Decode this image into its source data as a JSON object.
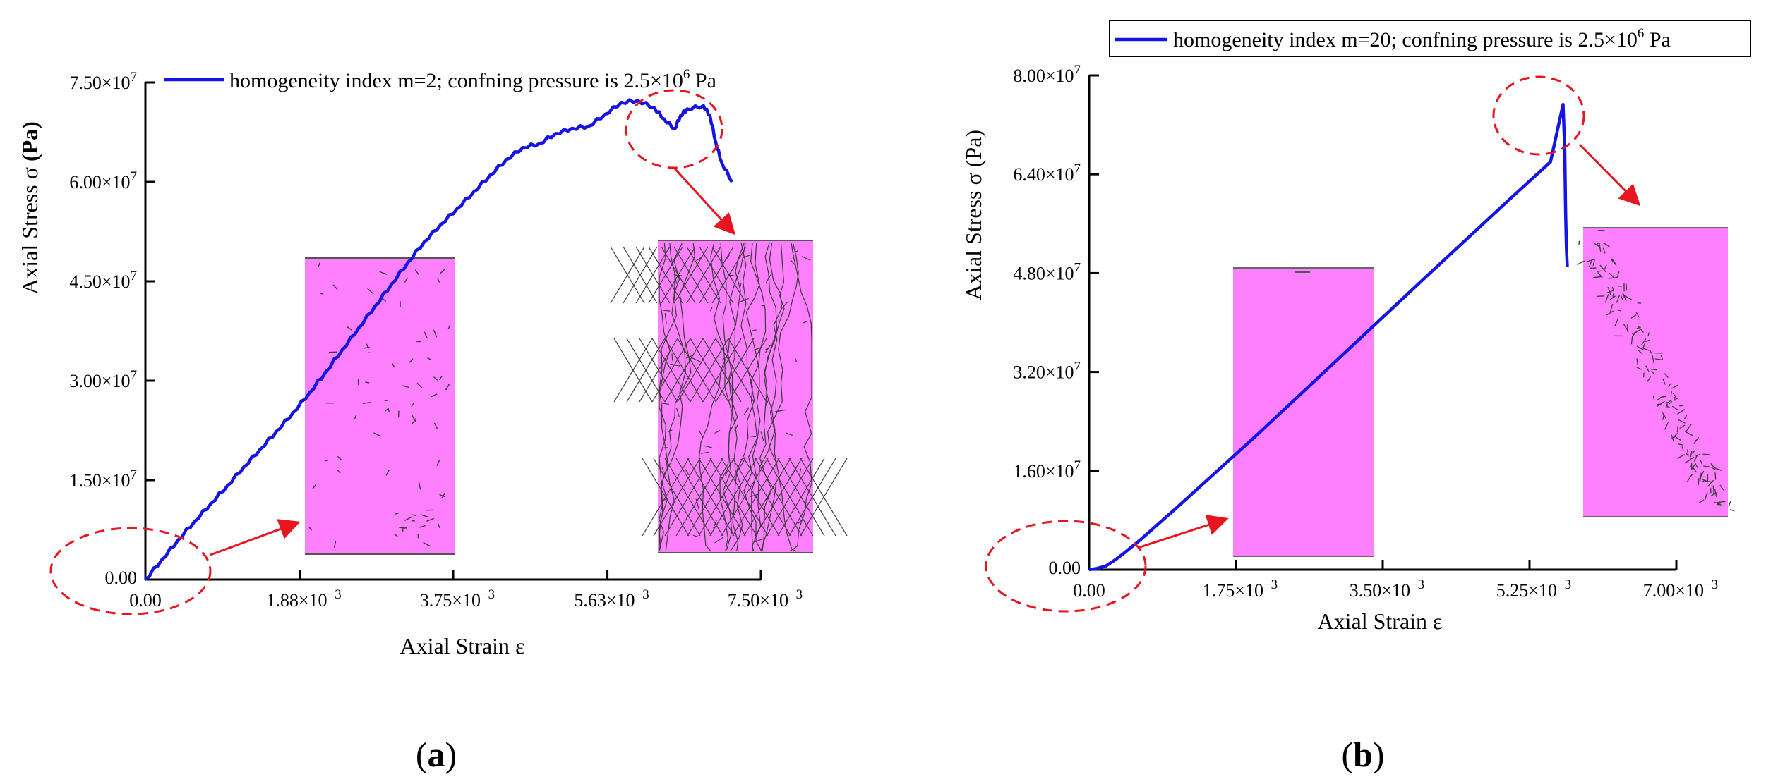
{
  "figure": {
    "colors": {
      "series": "#1414e6",
      "annotation": "#e8141e",
      "specimen": "#ff80ff",
      "crack": "#3a3a3a",
      "axis": "#000000"
    }
  },
  "chart_data": [
    {
      "type": "line",
      "panel_label": "(a)",
      "panel_prefix": "(",
      "panel_letter": "a",
      "panel_suffix": ")",
      "legend": {
        "before_sup": "homogeneity index m=2; confning pressure is 2.5×10",
        "sup": "6",
        "after_sup": " Pa",
        "placement": "top"
      },
      "xlabel": "Axial Strain ε",
      "ylabel": "Axial Stress σ (Pa)",
      "ylabel_parts": {
        "plain": "Axial Stress σ ",
        "bold": "(Pa)"
      },
      "xlim": [
        0,
        0.0075
      ],
      "ylim": [
        0,
        75000000
      ],
      "xticks": [
        {
          "value": 0,
          "label": "0.00",
          "mantissa": "",
          "exp": ""
        },
        {
          "value": 0.00188,
          "label": "1.88×10⁻³",
          "mantissa": "1.88×10",
          "exp": "−3"
        },
        {
          "value": 0.00375,
          "label": "3.75×10⁻³",
          "mantissa": "3.75×10",
          "exp": "−3"
        },
        {
          "value": 0.00563,
          "label": "5.63×10⁻³",
          "mantissa": "5.63×10",
          "exp": "−3"
        },
        {
          "value": 0.0075,
          "label": "7.50×10⁻³",
          "mantissa": "7.50×10",
          "exp": "−3"
        }
      ],
      "yticks": [
        {
          "value": 0,
          "label": "0.00",
          "mantissa": "",
          "exp": ""
        },
        {
          "value": 15000000,
          "label": "1.50×10⁷",
          "mantissa": "1.50×10",
          "exp": "7"
        },
        {
          "value": 30000000,
          "label": "3.00×10⁷",
          "mantissa": "3.00×10",
          "exp": "7"
        },
        {
          "value": 45000000,
          "label": "4.50×10⁷",
          "mantissa": "4.50×10",
          "exp": "7"
        },
        {
          "value": 60000000,
          "label": "6.00×10⁷",
          "mantissa": "6.00×10",
          "exp": "7"
        },
        {
          "value": 75000000,
          "label": "7.50×10⁷",
          "mantissa": "7.50×10",
          "exp": "7"
        }
      ],
      "series": [
        {
          "name": "homogeneity index m=2; confning pressure is 2.5×10⁶ Pa",
          "x": [
            0,
            0.0002,
            0.0004,
            0.0006,
            0.0008,
            0.001,
            0.0012,
            0.0014,
            0.0016,
            0.0018,
            0.002,
            0.0022,
            0.0024,
            0.0026,
            0.0028,
            0.003,
            0.0032,
            0.0034,
            0.0036,
            0.0038,
            0.004,
            0.0042,
            0.0044,
            0.0046,
            0.0048,
            0.005,
            0.0052,
            0.0054,
            0.0056,
            0.0058,
            0.006,
            0.0062,
            0.00632,
            0.00645,
            0.00652,
            0.0066,
            0.0068,
            0.00688,
            0.00695,
            0.00702,
            0.00715
          ],
          "y": [
            0,
            3000000,
            6000000,
            8800000,
            11500000,
            14200000,
            17000000,
            19700000,
            22400000,
            25200000,
            28200000,
            31400000,
            34700000,
            38000000,
            41300000,
            44600000,
            47900000,
            51000000,
            53600000,
            56000000,
            58500000,
            61000000,
            63400000,
            65200000,
            65800000,
            67300000,
            68100000,
            68400000,
            70200000,
            72000000,
            72300000,
            71200000,
            69500000,
            68000000,
            70000000,
            71000000,
            71500000,
            70000000,
            66000000,
            63000000,
            60000000
          ]
        }
      ],
      "annotations": [
        "dashed ellipse at origin",
        "dashed ellipse at peak",
        "specimen image: sparse cracks",
        "specimen image: dense crack network"
      ]
    },
    {
      "type": "line",
      "panel_label": "(b)",
      "panel_prefix": "(",
      "panel_letter": "b",
      "panel_suffix": ")",
      "legend": {
        "before_sup": "homogeneity index m=20; confning pressure is 2.5×10",
        "sup": "6",
        "after_sup": " Pa",
        "placement": "top"
      },
      "xlabel": "Axial Strain ε",
      "ylabel": "Axial Stress σ (Pa)",
      "ylabel_parts": {
        "plain": "Axial Stress σ (Pa)",
        "bold": ""
      },
      "xlim": [
        0,
        0.007
      ],
      "ylim": [
        0,
        80000000
      ],
      "xticks": [
        {
          "value": 0,
          "label": "0.00",
          "mantissa": "",
          "exp": ""
        },
        {
          "value": 0.00175,
          "label": "1.75×10⁻³",
          "mantissa": "1.75×10",
          "exp": "−3"
        },
        {
          "value": 0.0035,
          "label": "3.50×10⁻³",
          "mantissa": "3.50×10",
          "exp": "−3"
        },
        {
          "value": 0.00525,
          "label": "5.25×10⁻³",
          "mantissa": "5.25×10",
          "exp": "−3"
        },
        {
          "value": 0.007,
          "label": "7.00×10⁻³",
          "mantissa": "7.00×10",
          "exp": "−3"
        }
      ],
      "yticks": [
        {
          "value": 0,
          "label": "0.00",
          "mantissa": "",
          "exp": ""
        },
        {
          "value": 16000000,
          "label": "1.60×10⁷",
          "mantissa": "1.60×10",
          "exp": "7"
        },
        {
          "value": 32000000,
          "label": "3.20×10⁷",
          "mantissa": "3.20×10",
          "exp": "7"
        },
        {
          "value": 48000000,
          "label": "4.80×10⁷",
          "mantissa": "4.80×10",
          "exp": "7"
        },
        {
          "value": 64000000,
          "label": "6.40×10⁷",
          "mantissa": "6.40×10",
          "exp": "7"
        },
        {
          "value": 80000000,
          "label": "8.00×10⁷",
          "mantissa": "8.00×10",
          "exp": "7"
        }
      ],
      "series": [
        {
          "name": "homogeneity index m=20; confning pressure is 2.5×10⁶ Pa",
          "x": [
            0,
            0.0001,
            0.0002,
            0.0003,
            0.0004,
            0.0006,
            0.001,
            0.002,
            0.003,
            0.004,
            0.005,
            0.0055,
            0.00565,
            0.00567,
            0.00568,
            0.00569,
            0.0057
          ],
          "y": [
            0,
            200000,
            600000,
            1500000,
            2500000,
            4700000,
            9500000,
            21800000,
            34500000,
            47200000,
            59800000,
            66000000,
            75300000,
            68000000,
            58000000,
            52000000,
            49000000
          ]
        }
      ],
      "annotations": [
        "dashed ellipse at origin",
        "dashed ellipse at peak",
        "specimen image: intact",
        "specimen image: inclined shear band"
      ]
    }
  ]
}
